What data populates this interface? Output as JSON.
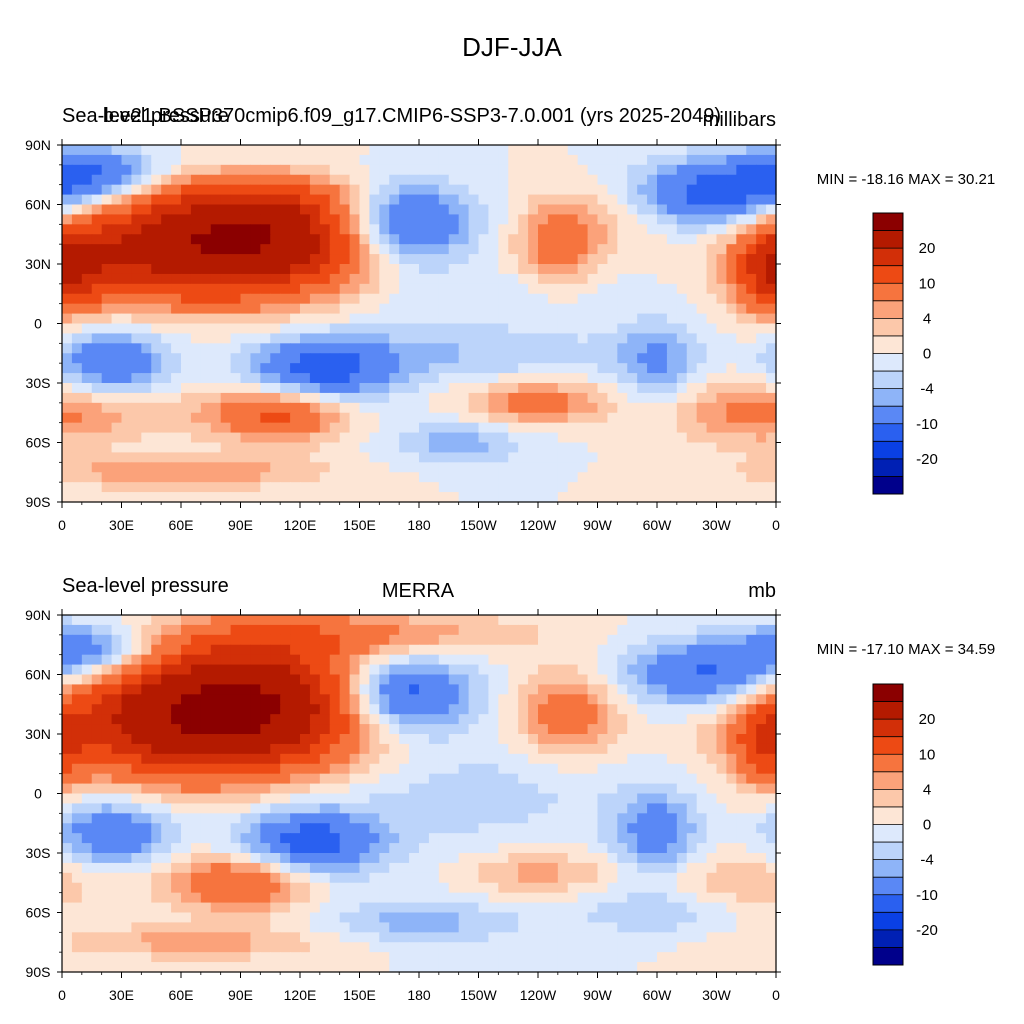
{
  "figure_title": "DJF-JJA",
  "chart_data": [
    {
      "type": "heatmap",
      "title_left": "Sea-level pressure",
      "title_center": "b.e21.BSSP370cmip6.f09_g17.CMIP6-SSP3-7.0.001 (yrs 2025-2049)",
      "units": "millibars",
      "minmax_text": "MIN = -18.16 MAX =  30.21",
      "min": -18.16,
      "max": 30.21,
      "lat_ticks": [
        "90N",
        "60N",
        "30N",
        "0",
        "30S",
        "60S",
        "90S"
      ],
      "lon_ticks": [
        "0",
        "30E",
        "60E",
        "90E",
        "120E",
        "150E",
        "180",
        "150W",
        "120W",
        "90W",
        "60W",
        "30W",
        "0"
      ],
      "xlim": [
        0,
        360
      ],
      "ylim": [
        -90,
        90
      ],
      "blobs": [
        {
          "lon": 100,
          "lat": 45,
          "sx": 45,
          "sy": 20,
          "v": 26
        },
        {
          "lon": 50,
          "lat": 35,
          "sx": 45,
          "sy": 18,
          "v": 12
        },
        {
          "lon": 10,
          "lat": 30,
          "sx": 15,
          "sy": 15,
          "v": 8
        },
        {
          "lon": 355,
          "lat": 25,
          "sx": 12,
          "sy": 15,
          "v": 10
        },
        {
          "lon": 250,
          "lat": 40,
          "sx": 15,
          "sy": 15,
          "v": 8
        },
        {
          "lon": 275,
          "lat": 55,
          "sx": 20,
          "sy": 12,
          "v": 3
        },
        {
          "lon": 170,
          "lat": 50,
          "sx": 25,
          "sy": 15,
          "v": -16
        },
        {
          "lon": 330,
          "lat": 65,
          "sx": 30,
          "sy": 12,
          "v": -12
        },
        {
          "lon": 15,
          "lat": 75,
          "sx": 25,
          "sy": 10,
          "v": -10
        },
        {
          "lon": 100,
          "lat": 80,
          "sx": 40,
          "sy": 8,
          "v": -3
        },
        {
          "lon": 25,
          "lat": -20,
          "sx": 20,
          "sy": 12,
          "v": -10
        },
        {
          "lon": 130,
          "lat": -25,
          "sx": 25,
          "sy": 12,
          "v": -12
        },
        {
          "lon": 300,
          "lat": -20,
          "sx": 15,
          "sy": 15,
          "v": -6
        },
        {
          "lon": 200,
          "lat": -15,
          "sx": 60,
          "sy": 10,
          "v": -4
        },
        {
          "lon": 200,
          "lat": 15,
          "sx": 60,
          "sy": 10,
          "v": -2
        },
        {
          "lon": 110,
          "lat": -45,
          "sx": 25,
          "sy": 10,
          "v": 12
        },
        {
          "lon": 240,
          "lat": -40,
          "sx": 25,
          "sy": 8,
          "v": 8
        },
        {
          "lon": 345,
          "lat": -45,
          "sx": 30,
          "sy": 12,
          "v": 6
        },
        {
          "lon": 30,
          "lat": -45,
          "sx": 30,
          "sy": 10,
          "v": 3
        },
        {
          "lon": 200,
          "lat": -60,
          "sx": 25,
          "sy": 8,
          "v": -5
        },
        {
          "lon": 60,
          "lat": -75,
          "sx": 50,
          "sy": 6,
          "v": 6
        }
      ]
    },
    {
      "type": "heatmap",
      "title_left": "Sea-level pressure",
      "title_center": "MERRA",
      "units": "mb",
      "minmax_text": "MIN = -17.10 MAX =  34.59",
      "min": -17.1,
      "max": 34.59,
      "lat_ticks": [
        "90N",
        "60N",
        "30N",
        "0",
        "30S",
        "60S",
        "90S"
      ],
      "lon_ticks": [
        "0",
        "30E",
        "60E",
        "90E",
        "120E",
        "150E",
        "180",
        "150W",
        "120W",
        "90W",
        "60W",
        "30W",
        "0"
      ],
      "xlim": [
        0,
        360
      ],
      "ylim": [
        -90,
        90
      ],
      "blobs": [
        {
          "lon": 95,
          "lat": 45,
          "sx": 45,
          "sy": 22,
          "v": 28
        },
        {
          "lon": 45,
          "lat": 35,
          "sx": 45,
          "sy": 20,
          "v": 13
        },
        {
          "lon": 150,
          "lat": 80,
          "sx": 60,
          "sy": 8,
          "v": 6
        },
        {
          "lon": 355,
          "lat": 25,
          "sx": 12,
          "sy": 15,
          "v": 9
        },
        {
          "lon": 255,
          "lat": 40,
          "sx": 18,
          "sy": 15,
          "v": 9
        },
        {
          "lon": 170,
          "lat": 50,
          "sx": 25,
          "sy": 14,
          "v": -16
        },
        {
          "lon": 325,
          "lat": 60,
          "sx": 30,
          "sy": 12,
          "v": -11
        },
        {
          "lon": 15,
          "lat": 72,
          "sx": 25,
          "sy": 10,
          "v": -10
        },
        {
          "lon": 25,
          "lat": -20,
          "sx": 20,
          "sy": 12,
          "v": -10
        },
        {
          "lon": 125,
          "lat": -25,
          "sx": 25,
          "sy": 12,
          "v": -12
        },
        {
          "lon": 300,
          "lat": -20,
          "sx": 15,
          "sy": 15,
          "v": -8
        },
        {
          "lon": 200,
          "lat": 0,
          "sx": 60,
          "sy": 20,
          "v": -3
        },
        {
          "lon": 90,
          "lat": -45,
          "sx": 25,
          "sy": 10,
          "v": 11
        },
        {
          "lon": 240,
          "lat": -40,
          "sx": 25,
          "sy": 8,
          "v": 5
        },
        {
          "lon": 345,
          "lat": -45,
          "sx": 30,
          "sy": 12,
          "v": 4
        },
        {
          "lon": 180,
          "lat": -65,
          "sx": 35,
          "sy": 8,
          "v": -5
        },
        {
          "lon": 300,
          "lat": -60,
          "sx": 30,
          "sy": 8,
          "v": -4
        },
        {
          "lon": 70,
          "lat": -75,
          "sx": 50,
          "sy": 6,
          "v": 5
        }
      ]
    }
  ],
  "colorbar": {
    "labels": [
      "20",
      "10",
      "4",
      "0",
      "-4",
      "-10",
      "-20"
    ],
    "levels": [
      -30,
      -20,
      -15,
      -10,
      -6,
      -4,
      -2,
      0,
      2,
      4,
      6,
      10,
      15,
      20,
      30
    ],
    "colors": [
      "#00008b",
      "#0020b4",
      "#0a40e4",
      "#2a60f0",
      "#5a88f5",
      "#8eb4f8",
      "#bcd4fa",
      "#dde9fc",
      "#fde6d6",
      "#fcc8aa",
      "#fba27a",
      "#f6743e",
      "#ed4a14",
      "#d22f08",
      "#b41a00",
      "#8b0000"
    ]
  }
}
